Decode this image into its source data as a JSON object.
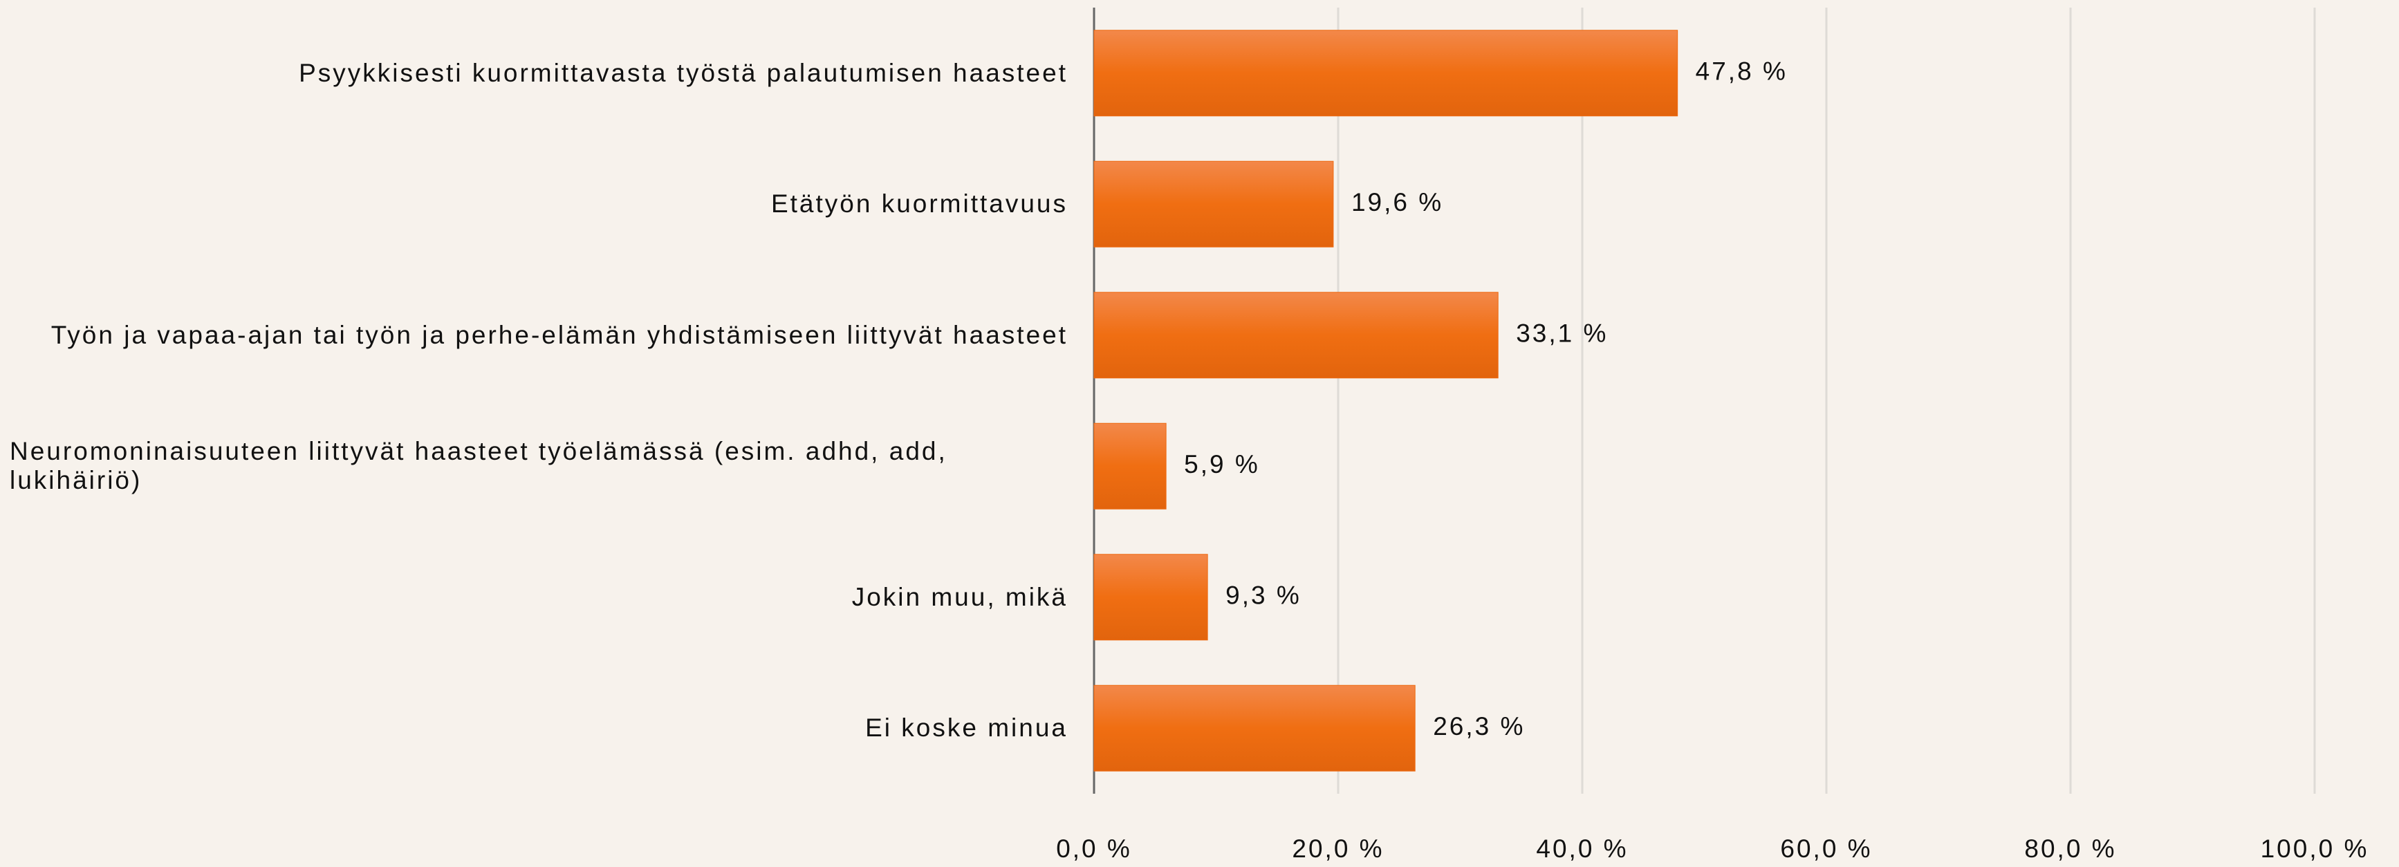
{
  "chart_data": {
    "type": "barh",
    "categories": [
      "Psyykkisesti kuormittavasta työstä palautumisen haasteet",
      "Etätyön kuormittavuus",
      "Työn ja vapaa-ajan tai työn ja perhe-elämän yhdistämiseen liittyvät haasteet",
      "Neuromoninaisuuteen liittyvät haasteet työelämässä (esim. adhd, add, lukihäiriö)",
      "Jokin muu, mikä",
      "Ei koske minua"
    ],
    "values": [
      47.8,
      19.6,
      33.1,
      5.9,
      9.3,
      26.3
    ],
    "value_labels": [
      "47,8 %",
      "19,6 %",
      "33,1 %",
      "5,9 %",
      "9,3 %",
      "26,3 %"
    ],
    "color": "#ee6a12",
    "xlim": [
      0,
      100
    ],
    "xticks": [
      {
        "value": 0,
        "label": "0,0 %"
      },
      {
        "value": 20,
        "label": "20,0 %"
      },
      {
        "value": 40,
        "label": "40,0 %"
      },
      {
        "value": 60,
        "label": "60,0 %"
      },
      {
        "value": 80,
        "label": "80,0 %"
      },
      {
        "value": 100,
        "label": "100,0 %"
      }
    ],
    "grid": true
  }
}
